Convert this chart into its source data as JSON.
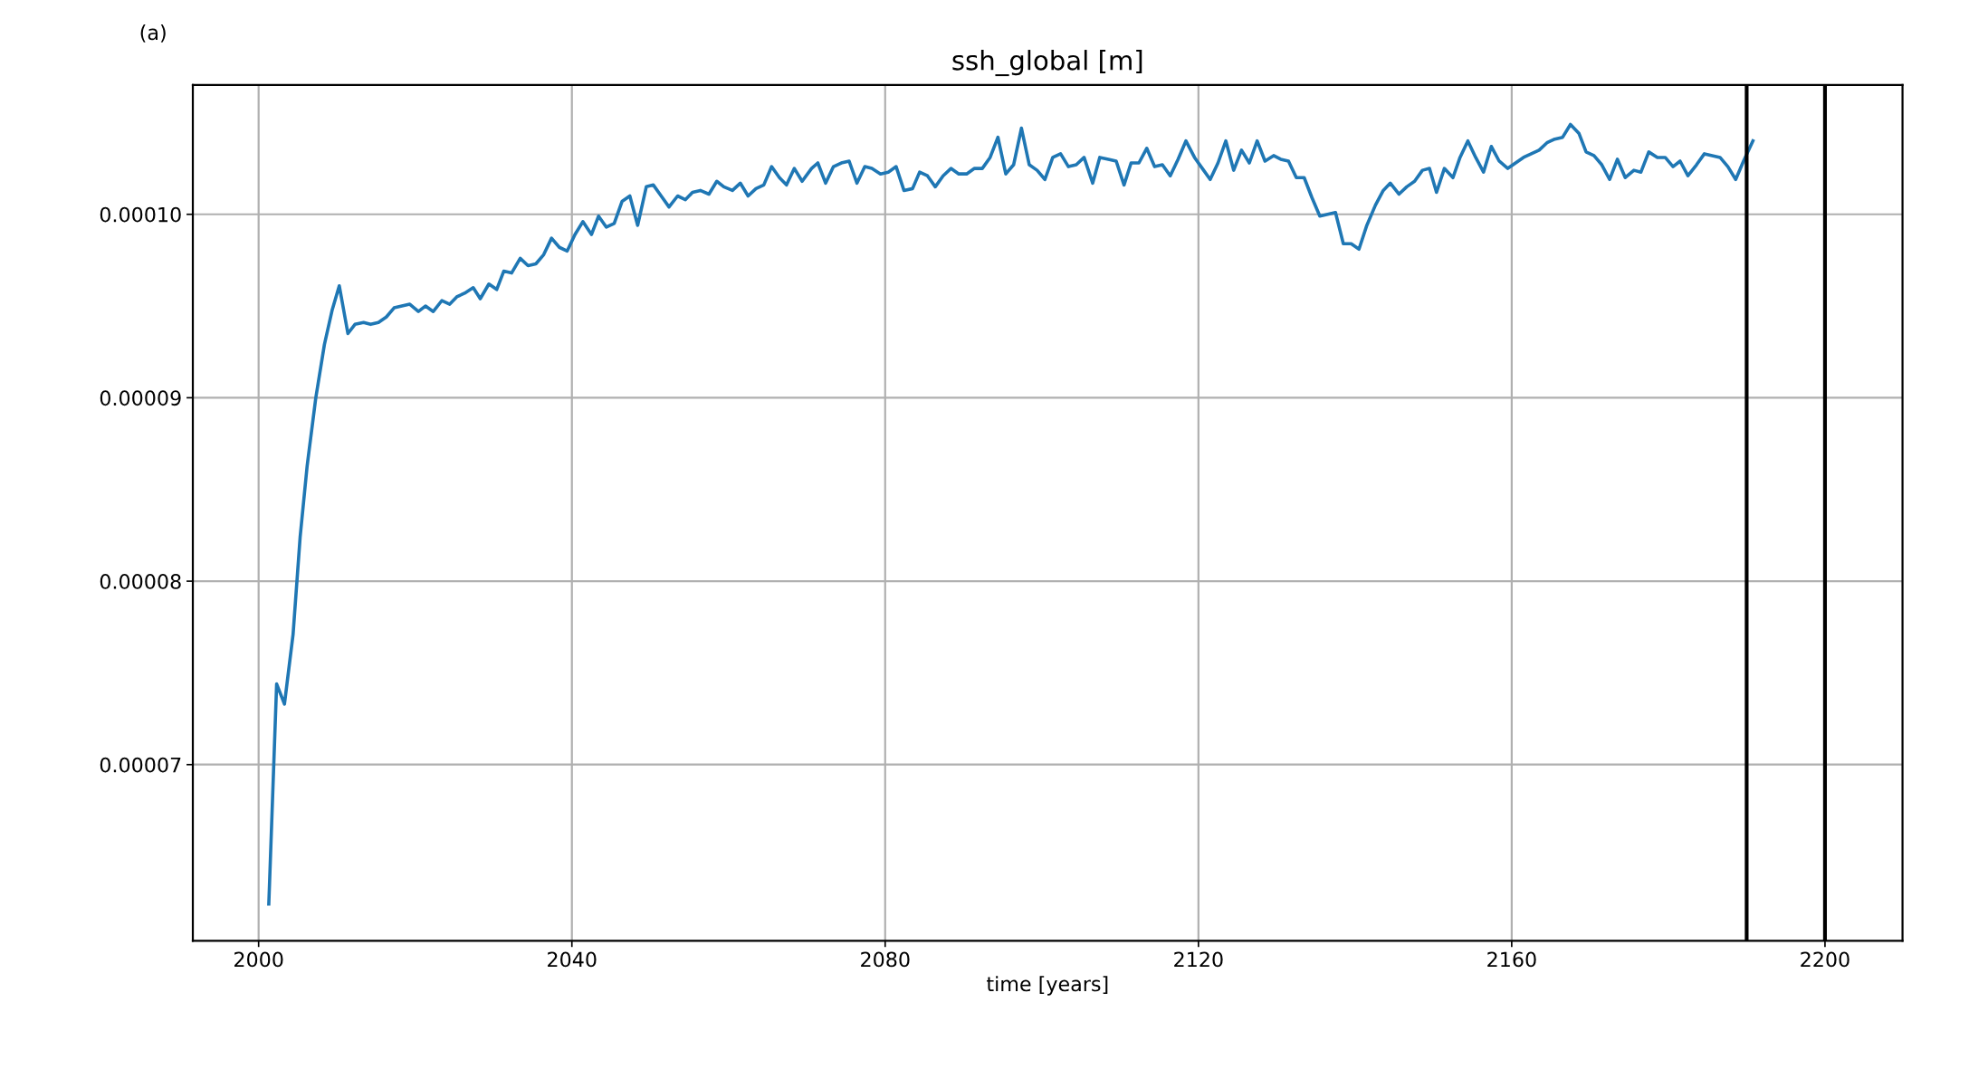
{
  "chart_data": {
    "type": "line",
    "title": "ssh_global [m]",
    "xlabel": "time [years]",
    "annotations": [
      "(a)"
    ],
    "x": [
      2001.3,
      2002.3,
      2003.3,
      2004.4,
      2005.3,
      2006.2,
      2007.3,
      2008.4,
      2009.4,
      2010.3,
      2011.4,
      2012.3,
      2013.4,
      2014.3,
      2015.3,
      2016.3,
      2017.3,
      2018.3,
      2019.3,
      2020.4,
      2021.3,
      2022.3,
      2023.4,
      2024.4,
      2025.3,
      2026.3,
      2027.4,
      2028.3,
      2029.4,
      2030.4,
      2031.3,
      2032.3,
      2033.4,
      2034.4,
      2035.4,
      2036.4,
      2037.4,
      2038.4,
      2039.4,
      2040.4,
      2041.4,
      2042.5,
      2043.4,
      2044.4,
      2045.4,
      2046.4,
      2047.4,
      2048.4,
      2049.5,
      2050.4,
      2051.4,
      2052.4,
      2053.5,
      2054.5,
      2055.4,
      2056.4,
      2057.5,
      2058.5,
      2059.4,
      2060.5,
      2061.5,
      2062.5,
      2063.5,
      2064.5,
      2065.5,
      2066.5,
      2067.4,
      2068.4,
      2069.4,
      2070.6,
      2071.4,
      2072.4,
      2073.4,
      2074.4,
      2075.4,
      2076.4,
      2077.4,
      2078.3,
      2079.4,
      2080.4,
      2081.4,
      2082.4,
      2083.5,
      2084.4,
      2085.4,
      2086.4,
      2087.4,
      2088.4,
      2089.4,
      2090.4,
      2091.4,
      2092.4,
      2093.4,
      2094.4,
      2095.4,
      2096.4,
      2097.4,
      2098.4,
      2099.4,
      2100.4,
      2101.4,
      2102.4,
      2103.4,
      2104.4,
      2105.4,
      2106.5,
      2107.4,
      2108.5,
      2109.5,
      2110.5,
      2111.4,
      2112.4,
      2113.4,
      2114.4,
      2115.4,
      2116.4,
      2117.4,
      2118.4,
      2119.5,
      2120.5,
      2121.5,
      2122.5,
      2123.5,
      2124.5,
      2125.5,
      2126.5,
      2127.5,
      2128.5,
      2129.6,
      2130.5,
      2131.5,
      2132.5,
      2133.5,
      2134.5,
      2135.5,
      2136.5,
      2137.5,
      2138.5,
      2139.5,
      2140.5,
      2141.5,
      2142.6,
      2143.6,
      2144.5,
      2145.6,
      2146.6,
      2147.6,
      2148.6,
      2149.5,
      2150.4,
      2151.4,
      2152.5,
      2153.4,
      2154.4,
      2155.4,
      2156.4,
      2157.4,
      2158.4,
      2159.5,
      2160.5,
      2161.5,
      2162.5,
      2163.5,
      2164.5,
      2165.5,
      2166.5,
      2167.5,
      2168.6,
      2169.5,
      2170.5,
      2171.5,
      2172.5,
      2173.5,
      2174.5,
      2175.6,
      2176.5,
      2177.5,
      2178.6,
      2179.6,
      2180.6,
      2181.5,
      2182.5,
      2183.6,
      2184.6,
      2185.6,
      2186.6,
      2187.6,
      2188.6,
      2189.6,
      2190.8
    ],
    "series": [
      {
        "color": "#1f77b4",
        "values": [
          6.24e-05,
          7.44e-05,
          7.33e-05,
          7.71e-05,
          8.24e-05,
          8.63e-05,
          9e-05,
          9.29e-05,
          9.48e-05,
          9.61e-05,
          9.35e-05,
          9.4e-05,
          9.41e-05,
          9.4e-05,
          9.41e-05,
          9.44e-05,
          9.49e-05,
          9.5e-05,
          9.51e-05,
          9.47e-05,
          9.5e-05,
          9.47e-05,
          9.53e-05,
          9.51e-05,
          9.55e-05,
          9.57e-05,
          9.6e-05,
          9.54e-05,
          9.62e-05,
          9.59e-05,
          9.69e-05,
          9.68e-05,
          9.76e-05,
          9.72e-05,
          9.73e-05,
          9.78e-05,
          9.87e-05,
          9.82e-05,
          9.8e-05,
          9.89e-05,
          9.96e-05,
          9.89e-05,
          9.99e-05,
          9.93e-05,
          9.95e-05,
          0.0001007,
          0.000101,
          9.94e-05,
          0.0001015,
          0.0001016,
          0.000101,
          0.0001004,
          0.000101,
          0.0001008,
          0.0001012,
          0.0001013,
          0.0001011,
          0.0001018,
          0.0001015,
          0.0001013,
          0.0001017,
          0.000101,
          0.0001014,
          0.0001016,
          0.0001026,
          0.000102,
          0.0001016,
          0.0001025,
          0.0001018,
          0.0001025,
          0.0001028,
          0.0001017,
          0.0001026,
          0.0001028,
          0.0001029,
          0.0001017,
          0.0001026,
          0.0001025,
          0.0001022,
          0.0001023,
          0.0001026,
          0.0001013,
          0.0001014,
          0.0001023,
          0.0001021,
          0.0001015,
          0.0001021,
          0.0001025,
          0.0001022,
          0.0001022,
          0.0001025,
          0.0001025,
          0.0001031,
          0.0001042,
          0.0001022,
          0.0001027,
          0.0001047,
          0.0001027,
          0.0001024,
          0.0001019,
          0.0001031,
          0.0001033,
          0.0001026,
          0.0001027,
          0.0001031,
          0.0001017,
          0.0001031,
          0.000103,
          0.0001029,
          0.0001016,
          0.0001028,
          0.0001028,
          0.0001036,
          0.0001026,
          0.0001027,
          0.0001021,
          0.000103,
          0.000104,
          0.0001031,
          0.0001025,
          0.0001019,
          0.0001028,
          0.000104,
          0.0001024,
          0.0001035,
          0.0001028,
          0.000104,
          0.0001029,
          0.0001032,
          0.000103,
          0.0001029,
          0.000102,
          0.000102,
          0.0001009,
          9.99e-05,
          0.0001,
          0.0001001,
          9.84e-05,
          9.84e-05,
          9.81e-05,
          9.94e-05,
          0.0001005,
          0.0001013,
          0.0001017,
          0.0001011,
          0.0001015,
          0.0001018,
          0.0001024,
          0.0001025,
          0.0001012,
          0.0001025,
          0.000102,
          0.0001031,
          0.000104,
          0.0001031,
          0.0001023,
          0.0001037,
          0.0001029,
          0.0001025,
          0.0001028,
          0.0001031,
          0.0001033,
          0.0001035,
          0.0001039,
          0.0001041,
          0.0001042,
          0.0001049,
          0.0001044,
          0.0001034,
          0.0001032,
          0.0001027,
          0.0001019,
          0.000103,
          0.000102,
          0.0001024,
          0.0001023,
          0.0001034,
          0.0001031,
          0.0001031,
          0.0001026,
          0.0001029,
          0.0001021,
          0.0001027,
          0.0001033,
          0.0001032,
          0.0001031,
          0.0001026,
          0.0001019,
          0.0001029,
          0.000104
        ]
      }
    ],
    "xlim": [
      1991.6,
      2209.9
    ],
    "ylim": [
      6.04e-05,
      0.00010705
    ],
    "xticks": [
      2000,
      2040,
      2080,
      2120,
      2160,
      2200
    ],
    "yticks": [
      {
        "value": 7e-05,
        "label": "0.00007"
      },
      {
        "value": 8e-05,
        "label": "0.00008"
      },
      {
        "value": 9e-05,
        "label": "0.00009"
      },
      {
        "value": 0.0001,
        "label": "0.00010"
      }
    ],
    "ref_lines": [
      {
        "axis": "x",
        "value": 2190,
        "color": "#000000"
      },
      {
        "axis": "x",
        "value": 2200,
        "color": "#000000"
      }
    ],
    "grid": true,
    "legend": false,
    "marker": "none",
    "line_style": "solid"
  }
}
